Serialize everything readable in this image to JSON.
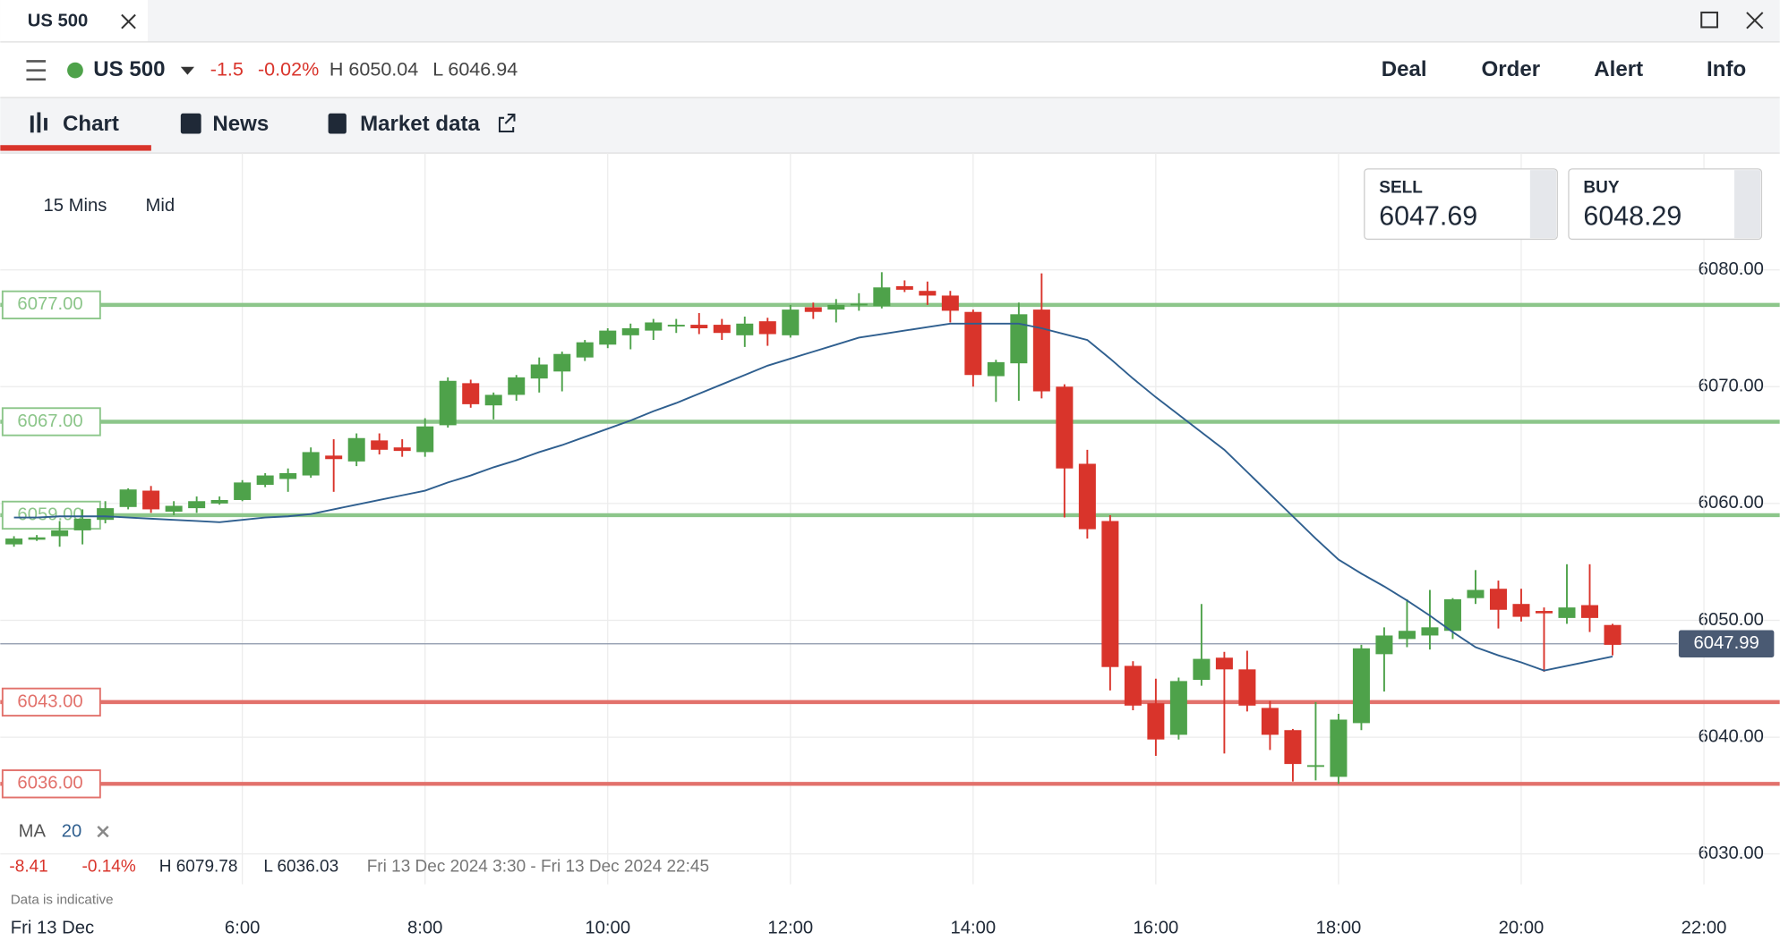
{
  "ui": {
    "window_tab": "US 500",
    "instrument": "US 500",
    "change": "-1.5",
    "change_pct": "-0.02%",
    "high": "H 6050.04",
    "low": "L 6046.94",
    "actions": [
      "Deal",
      "Order",
      "Alert",
      "Info"
    ],
    "tabs": [
      "Chart",
      "News",
      "Market data"
    ],
    "interval": "15 Mins",
    "price_mode": "Mid",
    "sell": {
      "label": "SELL",
      "price": "6047.69"
    },
    "buy": {
      "label": "BUY",
      "price": "6048.29"
    },
    "footer": {
      "change": "-8.41",
      "change_pct": "-0.14%",
      "high": "H 6079.78",
      "low": "L 6036.03",
      "range": "Fri 13 Dec 2024 3:30 - Fri 13 Dec 2024 22:45",
      "note": "Data is indicative",
      "date": "Fri 13 Dec"
    }
  },
  "chart_data": {
    "type": "candlestick",
    "x": [
      3.5,
      3.75,
      4,
      4.25,
      4.5,
      4.75,
      5,
      5.25,
      5.5,
      5.75,
      6,
      6.25,
      6.5,
      6.75,
      7,
      7.25,
      7.5,
      7.75,
      8,
      8.25,
      8.5,
      8.75,
      9,
      9.25,
      9.5,
      9.75,
      10,
      10.25,
      10.5,
      10.75,
      11,
      11.25,
      11.5,
      11.75,
      12,
      12.25,
      12.5,
      12.75,
      13,
      13.25,
      13.5,
      13.75,
      14,
      14.25,
      14.5,
      14.75,
      15,
      15.25,
      15.5,
      15.75,
      16,
      16.25,
      16.5,
      16.75,
      17,
      17.25,
      17.5,
      17.75,
      18,
      18.25,
      18.5,
      18.75,
      19,
      19.25,
      19.5,
      19.75,
      20,
      20.25,
      20.5,
      20.75,
      21
    ],
    "open": [
      6056.5,
      6056.9,
      6057.2,
      6057.7,
      6058.6,
      6059.7,
      6061.1,
      6059.3,
      6059.6,
      6060.0,
      6060.3,
      6061.6,
      6062.1,
      6062.4,
      6064.1,
      6063.6,
      6065.4,
      6064.8,
      6064.4,
      6066.7,
      6070.3,
      6068.4,
      6069.3,
      6070.7,
      6071.3,
      6072.5,
      6073.6,
      6074.4,
      6074.8,
      6075.2,
      6075.3,
      6075.3,
      6074.4,
      6075.6,
      6074.4,
      6076.8,
      6076.6,
      6077.0,
      6076.9,
      6078.6,
      6078.2,
      6077.8,
      6076.4,
      6070.9,
      6072.0,
      6076.6,
      6070.0,
      6063.4,
      6058.5,
      6046.1,
      6042.9,
      6040.2,
      6044.9,
      6046.8,
      6045.8,
      6042.5,
      6040.6,
      6037.6,
      6036.6,
      6041.2,
      6047.1,
      6048.4,
      6048.7,
      6049.1,
      6051.9,
      6052.7,
      6051.4,
      6050.8,
      6050.2,
      6051.3,
      6049.6
    ],
    "high": [
      6057.2,
      6057.3,
      6058.5,
      6059.5,
      6060.2,
      6061.3,
      6061.5,
      6060.2,
      6060.6,
      6060.6,
      6062.0,
      6062.6,
      6063.0,
      6064.8,
      6065.5,
      6066.0,
      6066.0,
      6065.5,
      6067.3,
      6070.8,
      6070.6,
      6069.5,
      6071.0,
      6072.5,
      6073.0,
      6074.0,
      6075.0,
      6075.4,
      6075.8,
      6075.8,
      6076.3,
      6075.8,
      6076.0,
      6075.9,
      6077.0,
      6077.2,
      6077.5,
      6078.0,
      6079.8,
      6079.1,
      6079.0,
      6078.2,
      6076.6,
      6072.3,
      6077.2,
      6079.7,
      6070.2,
      6064.6,
      6059.0,
      6046.5,
      6045.0,
      6045.1,
      6051.4,
      6047.3,
      6047.4,
      6043.1,
      6040.7,
      6043.0,
      6042.0,
      6047.9,
      6049.4,
      6051.8,
      6052.6,
      6051.9,
      6054.3,
      6053.4,
      6052.7,
      6051.1,
      6054.8,
      6054.8,
      6049.7
    ],
    "low": [
      6056.3,
      6056.8,
      6056.3,
      6056.5,
      6058.3,
      6059.5,
      6059.2,
      6059.0,
      6059.2,
      6059.9,
      6060.2,
      6061.4,
      6061.0,
      6062.2,
      6061.0,
      6063.2,
      6064.2,
      6064.0,
      6064.0,
      6066.5,
      6068.2,
      6067.2,
      6068.8,
      6069.5,
      6069.6,
      6072.2,
      6073.3,
      6073.2,
      6074.0,
      6074.6,
      6074.5,
      6074.0,
      6073.4,
      6073.5,
      6074.2,
      6075.8,
      6075.5,
      6076.5,
      6076.7,
      6078.1,
      6077.0,
      6075.5,
      6070.0,
      6068.7,
      6068.8,
      6069.0,
      6058.8,
      6057.0,
      6044.0,
      6042.3,
      6038.4,
      6039.8,
      6044.4,
      6038.6,
      6042.2,
      6038.9,
      6036.2,
      6036.3,
      6036.0,
      6040.6,
      6043.9,
      6047.7,
      6047.5,
      6048.4,
      6051.4,
      6049.3,
      6049.9,
      6045.6,
      6049.7,
      6049.0,
      6047.0
    ],
    "close": [
      6057.0,
      6057.1,
      6057.7,
      6058.7,
      6059.6,
      6061.2,
      6059.5,
      6059.8,
      6060.2,
      6060.3,
      6061.8,
      6062.4,
      6062.6,
      6064.4,
      6063.8,
      6065.6,
      6064.6,
      6064.5,
      6066.6,
      6070.5,
      6068.5,
      6069.3,
      6070.8,
      6071.9,
      6072.8,
      6073.8,
      6074.8,
      6075.0,
      6075.5,
      6075.3,
      6075.0,
      6074.6,
      6075.4,
      6074.5,
      6076.6,
      6076.4,
      6077.0,
      6077.1,
      6078.5,
      6078.3,
      6077.8,
      6076.5,
      6071.0,
      6072.1,
      6076.2,
      6069.6,
      6063.0,
      6057.8,
      6046.0,
      6042.7,
      6039.8,
      6044.8,
      6046.7,
      6045.8,
      6042.7,
      6040.2,
      6037.7,
      6037.6,
      6041.5,
      6047.6,
      6048.7,
      6049.1,
      6049.4,
      6051.8,
      6052.6,
      6050.9,
      6050.3,
      6050.6,
      6051.1,
      6050.2,
      6047.9
    ],
    "up_color": "#4ea24a",
    "down_color": "#d9342b",
    "ma": {
      "name": "MA",
      "period": 20,
      "color": "#2f5f8f",
      "values": [
        6058.8,
        6058.8,
        6058.9,
        6058.9,
        6058.9,
        6058.8,
        6058.7,
        6058.6,
        6058.5,
        6058.4,
        6058.6,
        6058.8,
        6058.9,
        6059.1,
        6059.5,
        6059.9,
        6060.3,
        6060.7,
        6061.1,
        6061.8,
        6062.4,
        6063.1,
        6063.7,
        6064.4,
        6065.0,
        6065.7,
        6066.4,
        6067.1,
        6067.9,
        6068.6,
        6069.4,
        6070.2,
        6071.0,
        6071.8,
        6072.4,
        6073.0,
        6073.6,
        6074.2,
        6074.5,
        6074.8,
        6075.1,
        6075.4,
        6075.4,
        6075.4,
        6075.4,
        6075.0,
        6074.5,
        6074.0,
        6072.4,
        6070.7,
        6069.1,
        6067.6,
        6066.1,
        6064.6,
        6062.7,
        6060.8,
        6058.9,
        6057.0,
        6055.2,
        6054.0,
        6052.9,
        6051.7,
        6050.4,
        6049.0,
        6047.7,
        6047.0,
        6046.4,
        6045.7,
        6046.1,
        6046.5,
        6046.9
      ]
    },
    "levels": [
      {
        "value": 6077,
        "label": "6077.00",
        "color": "#8cc68a"
      },
      {
        "value": 6067,
        "label": "6067.00",
        "color": "#8cc68a"
      },
      {
        "value": 6059,
        "label": "6059.00",
        "color": "#8cc68a"
      },
      {
        "value": 6043,
        "label": "6043.00",
        "color": "#e2716b"
      },
      {
        "value": 6036,
        "label": "6036.00",
        "color": "#e2716b"
      }
    ],
    "current": {
      "value": 6047.99,
      "label": "6047.99"
    },
    "xlim": [
      3.35,
      22.83
    ],
    "xticks": [
      {
        "value": 6,
        "label": "6:00"
      },
      {
        "value": 8,
        "label": "8:00"
      },
      {
        "value": 10,
        "label": "10:00"
      },
      {
        "value": 12,
        "label": "12:00"
      },
      {
        "value": 14,
        "label": "14:00"
      },
      {
        "value": 16,
        "label": "16:00"
      },
      {
        "value": 18,
        "label": "18:00"
      },
      {
        "value": 20,
        "label": "20:00"
      },
      {
        "value": 22,
        "label": "22:00"
      }
    ],
    "ylim": [
      6027.4,
      6090
    ],
    "yticks": [
      {
        "value": 6030,
        "label": "6030.00"
      },
      {
        "value": 6040,
        "label": "6040.00"
      },
      {
        "value": 6050,
        "label": "6050.00"
      },
      {
        "value": 6060,
        "label": "6060.00"
      },
      {
        "value": 6070,
        "label": "6070.00"
      },
      {
        "value": 6080,
        "label": "6080.00"
      }
    ],
    "grid": true
  }
}
